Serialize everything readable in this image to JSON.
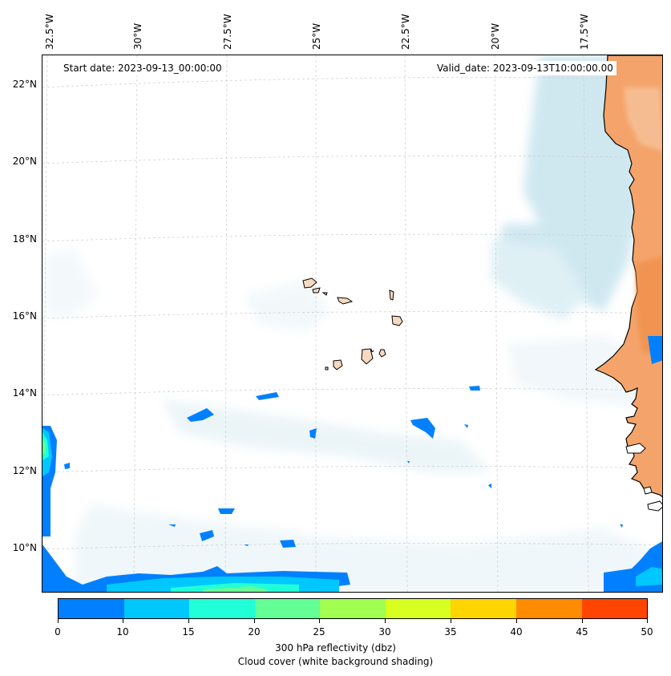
{
  "map": {
    "start_date": "Start date: 2023-09-13_00:00:00",
    "valid_date": "Valid_date: 2023-09-13T10:00:00.00",
    "lon_labels": [
      "32.5°W",
      "30°W",
      "27.5°W",
      "25°W",
      "22.5°W",
      "20°W",
      "17.5°W"
    ],
    "lat_labels": [
      "22°N",
      "20°N",
      "18°N",
      "16°N",
      "14°N",
      "12°N",
      "10°N"
    ],
    "land_color": "#f4a46a",
    "cloud_color": "#a9d6e5",
    "coast_color": "#000000"
  },
  "colorbar": {
    "ticks": [
      "0",
      "10",
      "15",
      "20",
      "25",
      "30",
      "35",
      "40",
      "45",
      "50"
    ],
    "colors": [
      "#0080ff",
      "#00c8ff",
      "#20ffd8",
      "#64ff96",
      "#a0ff50",
      "#d8ff20",
      "#ffd500",
      "#ff8c00",
      "#ff4500"
    ],
    "title_line1": "300 hPa reflectivity (dbz)",
    "title_line2": "Cloud cover (white background shading)"
  }
}
